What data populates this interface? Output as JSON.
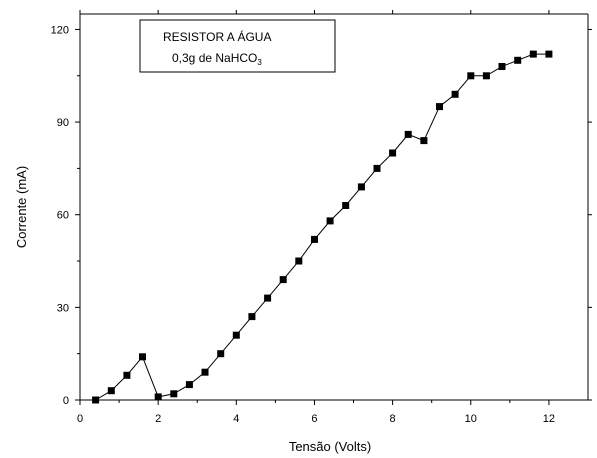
{
  "chart_data": {
    "type": "line",
    "title": "",
    "xlabel": "Tensão (Volts)",
    "ylabel": "Corrente (mA)",
    "xlim": [
      0,
      13
    ],
    "ylim": [
      0,
      125
    ],
    "x_ticks": [
      0,
      2,
      4,
      6,
      8,
      10,
      12
    ],
    "y_ticks": [
      0,
      30,
      60,
      90,
      120
    ],
    "x_tick_labels": [
      "0",
      "2",
      "4",
      "6",
      "8",
      "10",
      "12"
    ],
    "y_tick_labels": [
      "0",
      "30",
      "60",
      "90",
      "120"
    ],
    "grid": false,
    "marker": "square",
    "color": "#000000",
    "annotation": {
      "line1": "RESISTOR A ÁGUA",
      "line2": "0,3g de NaHCO",
      "line2_subscript": "3",
      "placement": "top-left"
    },
    "series": [
      {
        "x": [
          0.4,
          0.8,
          1.2,
          1.6,
          2.0,
          2.4,
          2.8,
          3.2,
          3.6,
          4.0,
          4.4,
          4.8,
          5.2,
          5.6,
          6.0,
          6.4,
          6.8,
          7.2,
          7.6,
          8.0,
          8.4,
          8.8,
          9.2,
          9.6,
          10.0,
          10.4,
          10.8,
          11.2,
          11.6,
          12.0
        ],
        "y": [
          0,
          3,
          8,
          14,
          1,
          2,
          5,
          9,
          15,
          21,
          27,
          33,
          39,
          45,
          52,
          58,
          63,
          69,
          75,
          80,
          86,
          84,
          95,
          99,
          105,
          105,
          108,
          110,
          112,
          112
        ]
      }
    ]
  }
}
